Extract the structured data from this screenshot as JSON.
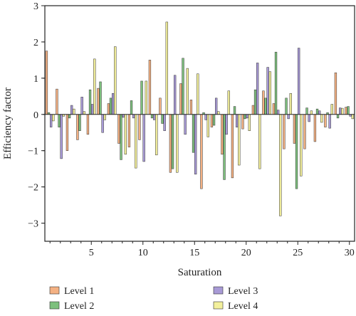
{
  "chart_data": {
    "type": "bar",
    "xlabel": "Saturation",
    "ylabel": "Efficiency factor",
    "ylim": [
      -3.5,
      3
    ],
    "xlim": [
      0.5,
      30.5
    ],
    "xticks": [
      5,
      10,
      15,
      20,
      25,
      30
    ],
    "yticks": [
      -3,
      -2,
      -1,
      0,
      1,
      2,
      3
    ],
    "x": [
      1,
      2,
      3,
      4,
      5,
      6,
      7,
      8,
      9,
      10,
      11,
      12,
      13,
      14,
      15,
      16,
      17,
      18,
      19,
      20,
      21,
      22,
      23,
      24,
      25,
      26,
      27,
      28,
      29,
      30
    ],
    "series": [
      {
        "name": "Level 1",
        "color": "#f4b183",
        "values": [
          1.75,
          0.7,
          -1.0,
          -0.7,
          -0.55,
          0.72,
          0.3,
          -0.8,
          -0.9,
          -0.7,
          1.5,
          0.45,
          -1.6,
          0.85,
          0.4,
          -2.05,
          -0.35,
          -1.1,
          -1.75,
          -0.4,
          0.25,
          0.65,
          0.3,
          -0.95,
          -0.8,
          -0.95,
          -0.75,
          -0.35,
          1.15,
          0.2
        ]
      },
      {
        "name": "Level 2",
        "color": "#7dc07d",
        "values": [
          0.05,
          -0.35,
          -0.1,
          -0.45,
          0.68,
          0.9,
          0.45,
          -1.25,
          0.38,
          0.92,
          -0.1,
          -0.25,
          -1.5,
          1.55,
          -1.05,
          0.05,
          -0.3,
          -1.8,
          0.22,
          -0.12,
          0.68,
          0.45,
          1.72,
          0.45,
          -2.05,
          0.18,
          0.15,
          0.05,
          -0.1,
          0.22
        ]
      },
      {
        "name": "Level 3",
        "color": "#a89ad6",
        "values": [
          -0.35,
          -1.22,
          0.25,
          0.48,
          0.28,
          -0.5,
          0.58,
          -0.08,
          -0.1,
          -1.3,
          -0.15,
          -0.45,
          1.08,
          -0.55,
          -1.65,
          -0.15,
          0.45,
          -0.55,
          -0.35,
          -0.1,
          1.42,
          1.3,
          0.12,
          -0.12,
          1.83,
          -0.2,
          0.1,
          -0.38,
          0.18,
          -0.05
        ]
      },
      {
        "name": "Level 4",
        "color": "#f3f09c",
        "values": [
          -0.18,
          -0.05,
          0.15,
          0.08,
          1.53,
          -0.15,
          1.87,
          -1.1,
          -1.48,
          0.92,
          -1.12,
          2.55,
          -1.6,
          1.27,
          1.12,
          -0.62,
          0.08,
          0.65,
          -1.4,
          -0.45,
          -1.5,
          1.18,
          -2.8,
          0.58,
          -1.7,
          0.1,
          -0.22,
          0.28,
          0.17,
          -0.12
        ]
      }
    ]
  }
}
